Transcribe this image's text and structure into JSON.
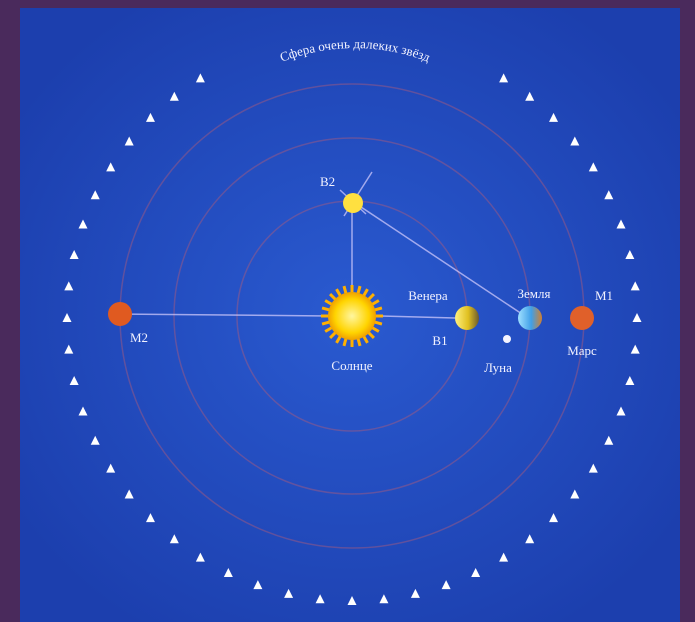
{
  "diagram": {
    "sphere_label": "Сфера очень далеких звёзд",
    "nodes": [
      {
        "label": "В2"
      },
      {
        "label": "М2"
      },
      {
        "label": "Солнце"
      },
      {
        "label": "Венера"
      },
      {
        "label": "В1"
      },
      {
        "label": "Земля"
      },
      {
        "label": "М1"
      },
      {
        "label": "Луна"
      },
      {
        "label": "Марс"
      }
    ]
  }
}
